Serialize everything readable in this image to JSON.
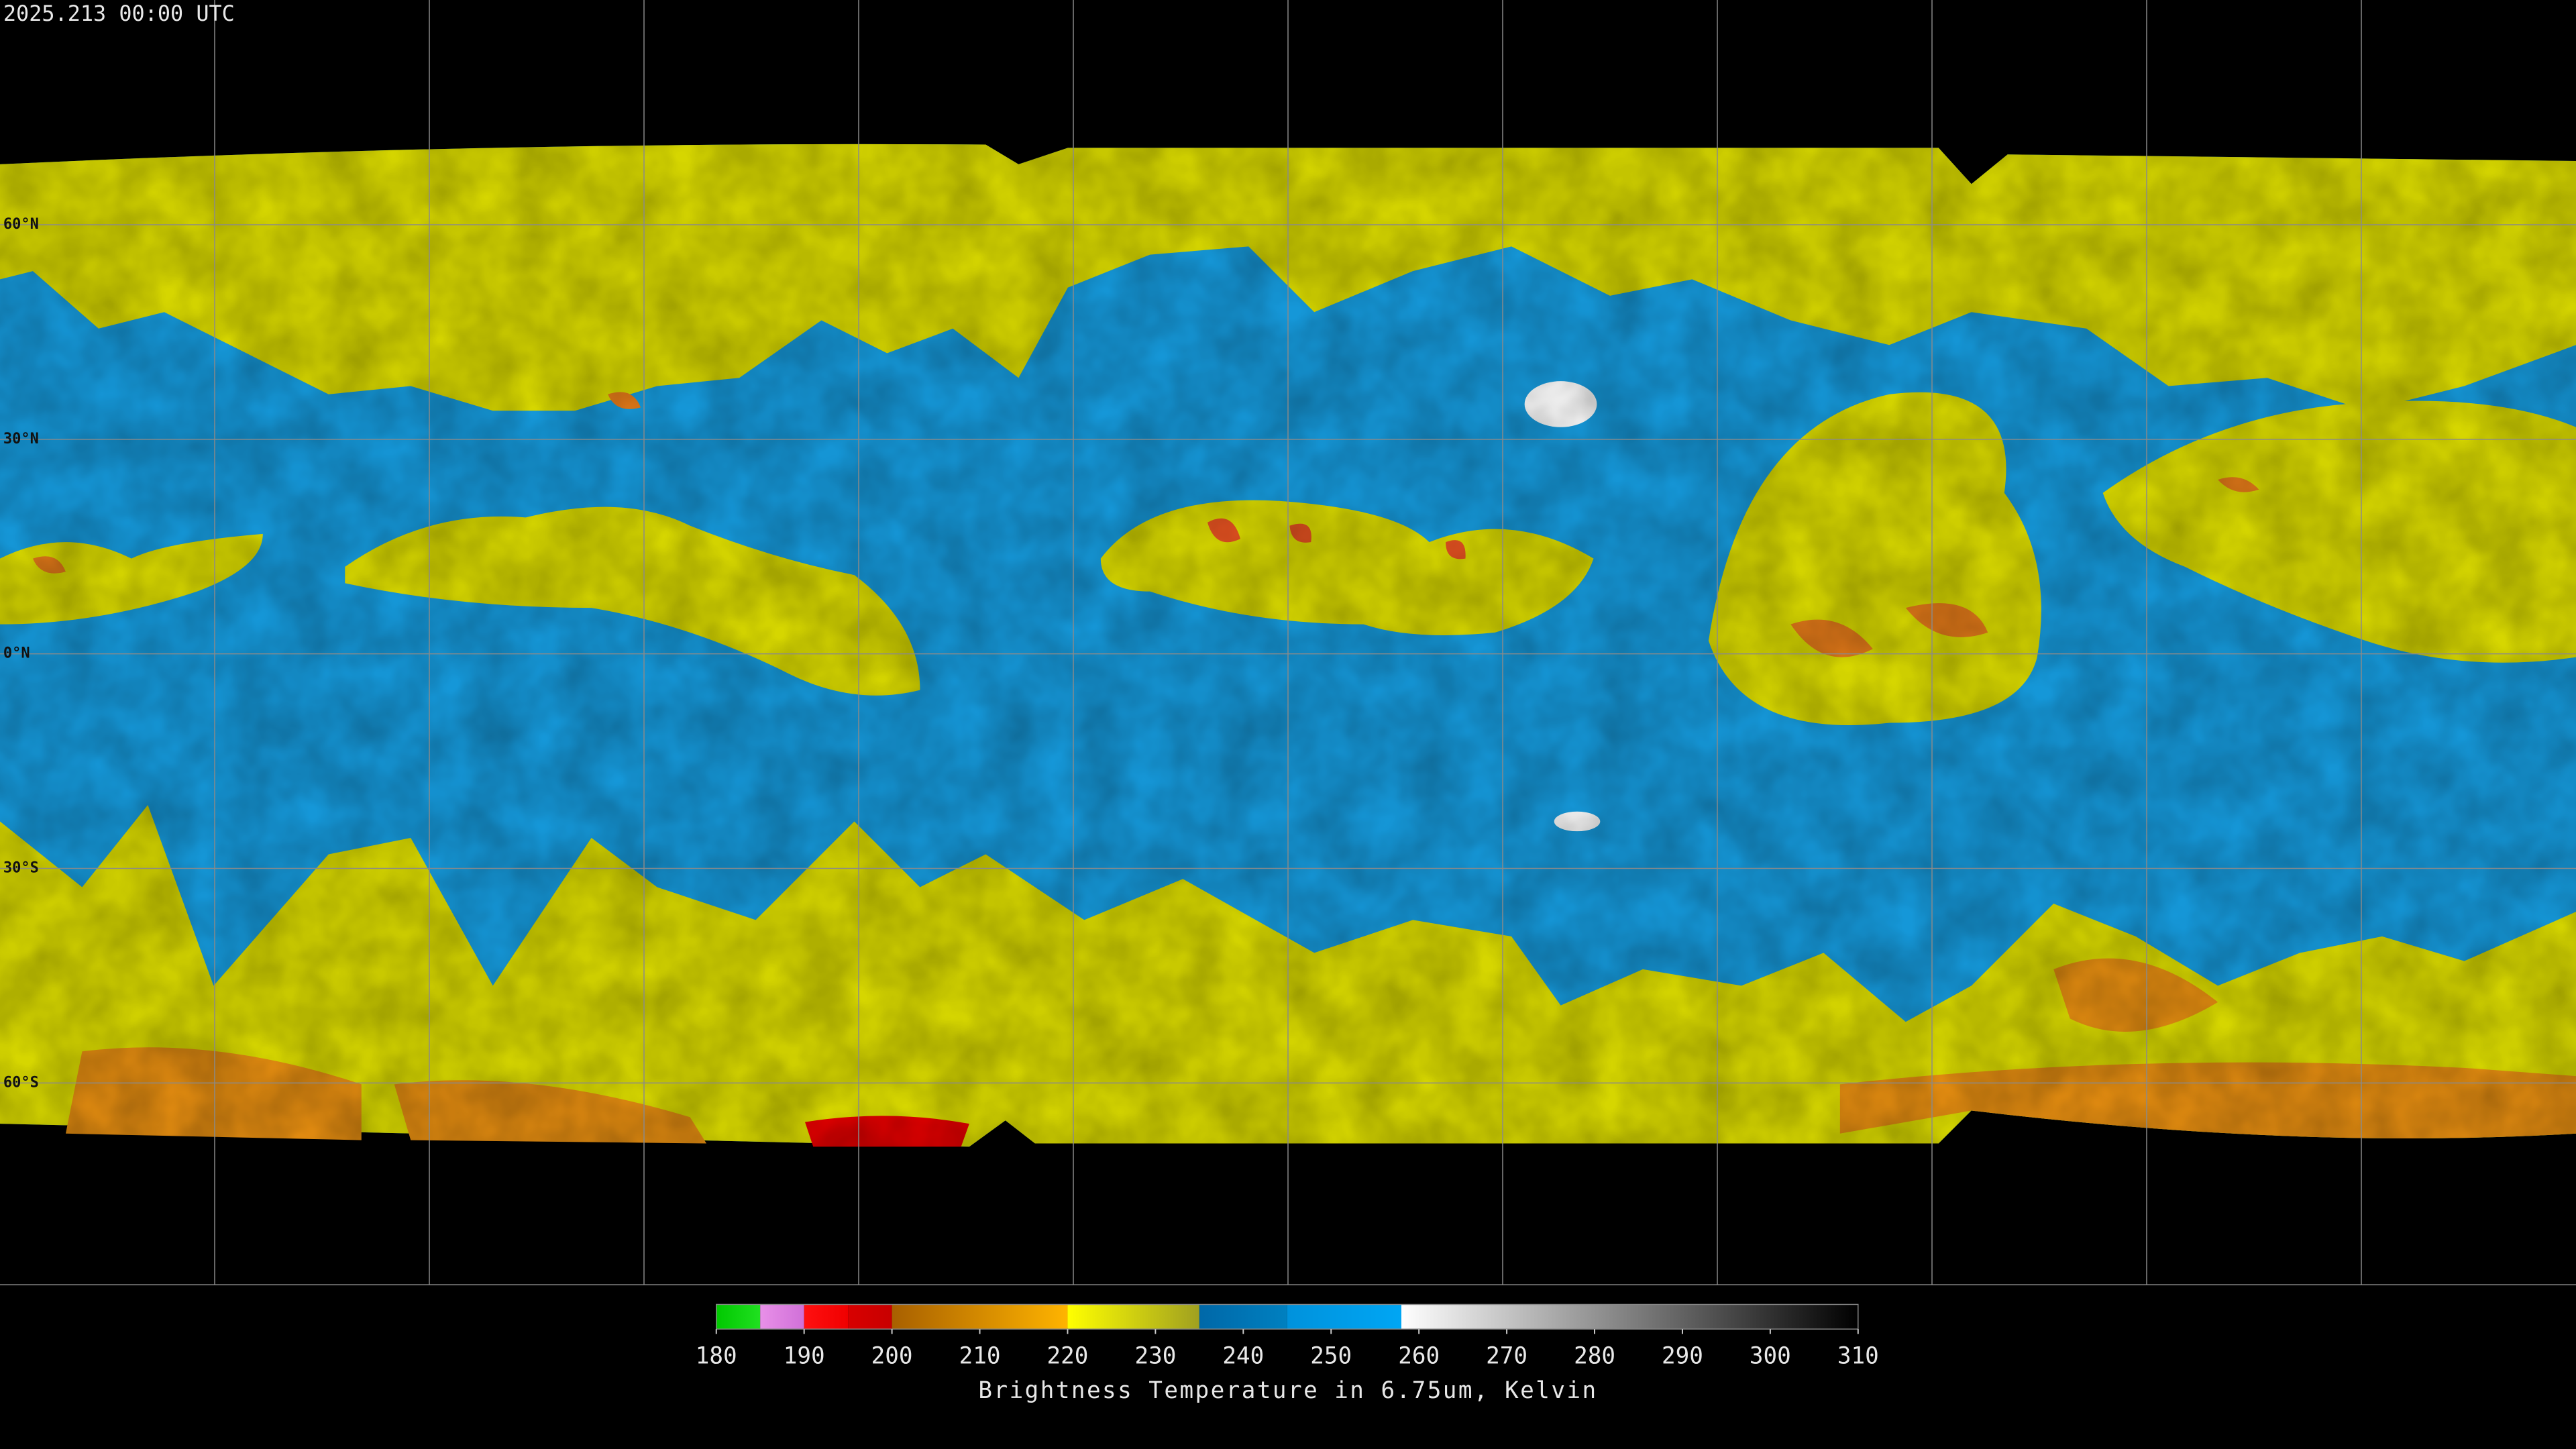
{
  "title": "2025.213 00:00 UTC",
  "map": {
    "latitudes": [
      {
        "value": 60,
        "label": "60°N"
      },
      {
        "value": 30,
        "label": "30°N"
      },
      {
        "value": 0,
        "label": "0°N"
      },
      {
        "value": -30,
        "label": "30°S"
      },
      {
        "value": -60,
        "label": "60°S"
      }
    ]
  },
  "colorbar": {
    "lim": [
      180,
      310
    ],
    "ticks": [
      180,
      190,
      200,
      210,
      220,
      230,
      240,
      250,
      260,
      270,
      280,
      290,
      300,
      310
    ],
    "label": "Brightness Temperature in 6.75um, Kelvin",
    "segments": [
      {
        "from": 180,
        "to": 185,
        "colors": [
          "#00c800",
          "#20e020"
        ]
      },
      {
        "from": 185,
        "to": 190,
        "colors": [
          "#e890e8",
          "#d070d8"
        ]
      },
      {
        "from": 190,
        "to": 195,
        "colors": [
          "#ff1010",
          "#f00000"
        ]
      },
      {
        "from": 195,
        "to": 200,
        "colors": [
          "#d80000",
          "#c80000"
        ]
      },
      {
        "from": 200,
        "to": 220,
        "colors": [
          "#a86000",
          "#ffb400"
        ]
      },
      {
        "from": 220,
        "to": 235,
        "colors": [
          "#ffff00",
          "#a0a020"
        ]
      },
      {
        "from": 235,
        "to": 245,
        "colors": [
          "#0068a8",
          "#0080c0"
        ]
      },
      {
        "from": 245,
        "to": 258,
        "colors": [
          "#0092dc",
          "#00a6f4"
        ]
      },
      {
        "from": 258,
        "to": 310,
        "colors": [
          "#ffffff",
          "#000000"
        ]
      }
    ]
  }
}
